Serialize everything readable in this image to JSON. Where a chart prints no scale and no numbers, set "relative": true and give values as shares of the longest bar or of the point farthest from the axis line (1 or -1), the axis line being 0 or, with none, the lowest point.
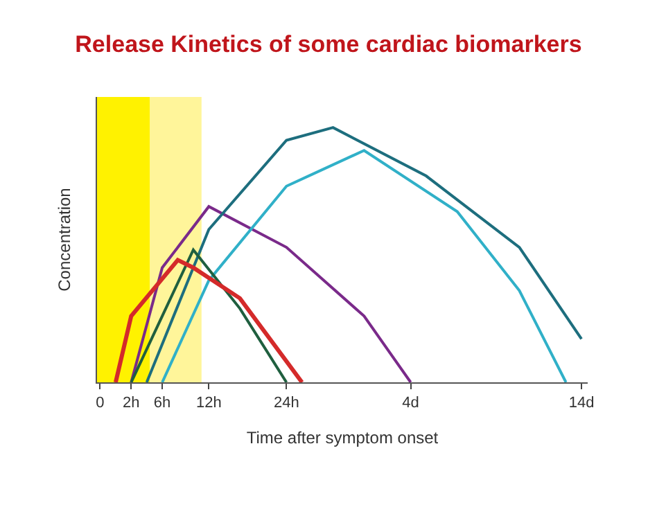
{
  "chart_data": {
    "type": "line",
    "title": "Release Kinetics of some cardiac biomarkers",
    "xlabel": "Time after symptom onset",
    "ylabel": "Concentration",
    "relative": true,
    "grid": false,
    "marker": "none",
    "line_style": "solid",
    "categories": [
      "0",
      null,
      "2h",
      null,
      "6h",
      null,
      null,
      "12h",
      null,
      null,
      null,
      null,
      "24h",
      null,
      null,
      null,
      null,
      null,
      null,
      null,
      "4d",
      null,
      null,
      null,
      null,
      null,
      null,
      null,
      null,
      null,
      null,
      "14d"
    ],
    "series": [
      {
        "color": "#7a2a8a",
        "values": [
          null,
          null,
          0,
          null,
          0.45,
          null,
          null,
          0.69,
          null,
          null,
          null,
          null,
          0.53,
          null,
          null,
          null,
          null,
          0.26,
          null,
          null,
          0,
          null,
          null,
          null,
          null,
          null,
          null,
          null,
          null,
          null,
          null,
          null
        ]
      },
      {
        "color": "#1d6e7e",
        "values": [
          null,
          null,
          null,
          0,
          null,
          null,
          null,
          0.6,
          null,
          null,
          null,
          null,
          0.95,
          null,
          null,
          1.0,
          null,
          null,
          null,
          null,
          null,
          0.81,
          null,
          null,
          null,
          null,
          null,
          0.53,
          null,
          null,
          null,
          0.17
        ]
      },
      {
        "color": "#30b0c8",
        "values": [
          null,
          null,
          null,
          null,
          0,
          null,
          null,
          0.4,
          null,
          null,
          null,
          null,
          0.77,
          null,
          null,
          null,
          null,
          0.91,
          null,
          null,
          null,
          null,
          null,
          0.67,
          null,
          null,
          null,
          0.36,
          null,
          null,
          0,
          null
        ]
      },
      {
        "color": "#1f5f3f",
        "values": [
          null,
          null,
          0,
          null,
          0.26,
          null,
          0.52,
          null,
          null,
          0.29,
          null,
          null,
          0,
          null,
          null,
          null,
          null,
          null,
          null,
          null,
          null,
          null,
          null,
          null,
          null,
          null,
          null,
          null,
          null,
          null,
          null,
          null
        ]
      },
      {
        "color": "#d42a2a",
        "values": [
          null,
          0,
          0.26,
          null,
          null,
          0.48,
          0.45,
          null,
          null,
          0.33,
          null,
          null,
          null,
          0,
          null,
          null,
          null,
          null,
          null,
          null,
          null,
          null,
          null,
          null,
          null,
          null,
          null,
          null,
          null,
          null,
          null,
          null
        ]
      }
    ]
  }
}
